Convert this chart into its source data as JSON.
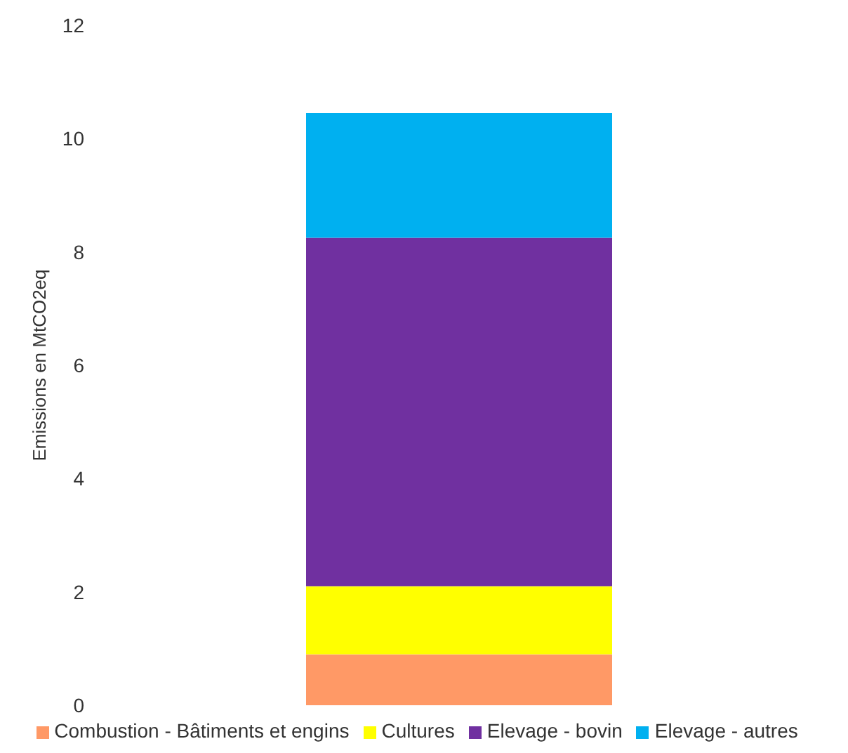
{
  "chart_data": {
    "type": "bar",
    "stacked": true,
    "ylabel": "Emissions en MtCO2eq",
    "categories": [
      null
    ],
    "series": [
      {
        "name": "Combustion - Bâtiments et engins",
        "color": "#ff9966",
        "values": [
          0.9
        ]
      },
      {
        "name": "Cultures",
        "color": "#ffff00",
        "values": [
          1.2
        ]
      },
      {
        "name": "Elevage - bovin",
        "color": "#7030a0",
        "values": [
          6.15
        ]
      },
      {
        "name": "Elevage - autres",
        "color": "#00b0f0",
        "values": [
          2.2
        ]
      }
    ],
    "ylim": [
      0,
      12
    ],
    "yticks": [
      0,
      2,
      4,
      6,
      8,
      10,
      12
    ],
    "legend": "bottom"
  }
}
